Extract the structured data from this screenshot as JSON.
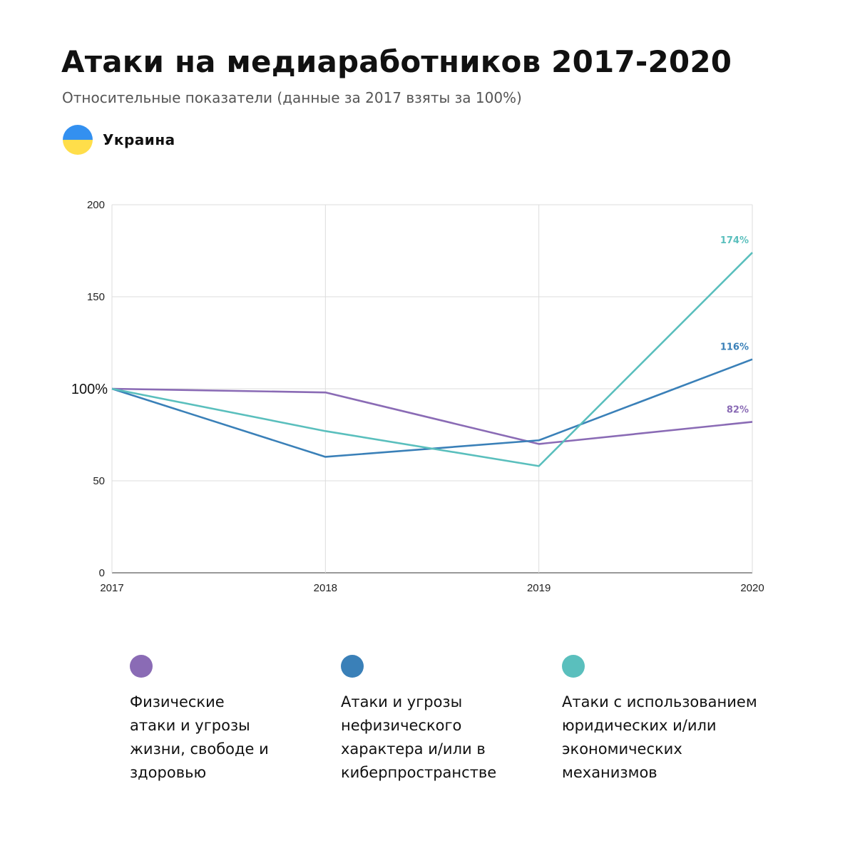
{
  "header": {
    "title": "Атаки на медиаработников 2017-2020",
    "subtitle": "Относительные показатели (данные за 2017 взяты за 100%)",
    "country": "Украина",
    "flag_colors": [
      "#3390f0",
      "#ffde4a"
    ]
  },
  "chart_data": {
    "type": "line",
    "x": [
      "2017",
      "2018",
      "2019",
      "2020"
    ],
    "ylim": [
      0,
      200
    ],
    "yticks": [
      "0",
      "50",
      "100%",
      "150",
      "200"
    ],
    "grid": true,
    "series": [
      {
        "name": "Физические\nатаки и угрозы\nжизни, свободе и\nздоровью",
        "color": "#8a6bb5",
        "values": [
          100,
          98,
          70,
          82
        ],
        "end_label": "82%"
      },
      {
        "name": "Атаки и угрозы\nнефизического\nхарактера и/или в\nкиберпространстве",
        "color": "#3a80b8",
        "values": [
          100,
          63,
          72,
          116
        ],
        "end_label": "116%"
      },
      {
        "name": "Атаки с использованием\nюридических и/или\nэкономических\nмеханизмов",
        "color": "#5abfbd",
        "values": [
          100,
          77,
          58,
          174
        ],
        "end_label": "174%"
      }
    ]
  }
}
